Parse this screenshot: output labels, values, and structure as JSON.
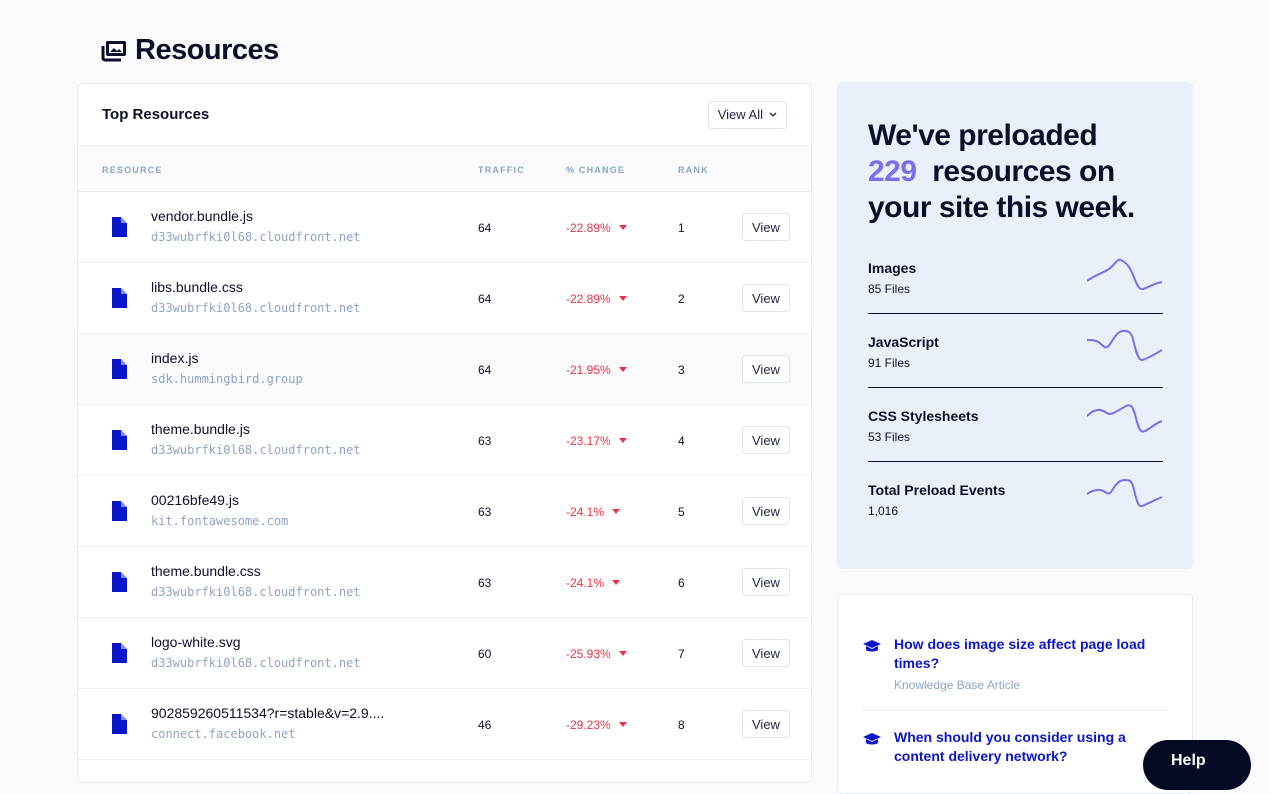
{
  "page": {
    "title": "Resources",
    "title_icon": "images-icon"
  },
  "table": {
    "title": "Top Resources",
    "view_all_label": "View All",
    "columns": [
      "RESOURCE",
      "TRAFFIC",
      "% CHANGE",
      "RANK"
    ],
    "row_button_label": "View",
    "rows": [
      {
        "name": "vendor.bundle.js",
        "host": "d33wubrfki0l68.cloudfront.net",
        "traffic": "64",
        "change": "-22.89%",
        "rank": "1"
      },
      {
        "name": "libs.bundle.css",
        "host": "d33wubrfki0l68.cloudfront.net",
        "traffic": "64",
        "change": "-22.89%",
        "rank": "2"
      },
      {
        "name": "index.js",
        "host": "sdk.hummingbird.group",
        "traffic": "64",
        "change": "-21.95%",
        "rank": "3"
      },
      {
        "name": "theme.bundle.js",
        "host": "d33wubrfki0l68.cloudfront.net",
        "traffic": "63",
        "change": "-23.17%",
        "rank": "4"
      },
      {
        "name": "00216bfe49.js",
        "host": "kit.fontawesome.com",
        "traffic": "63",
        "change": "-24.1%",
        "rank": "5"
      },
      {
        "name": "theme.bundle.css",
        "host": "d33wubrfki0l68.cloudfront.net",
        "traffic": "63",
        "change": "-24.1%",
        "rank": "6"
      },
      {
        "name": "logo-white.svg",
        "host": "d33wubrfki0l68.cloudfront.net",
        "traffic": "60",
        "change": "-25.93%",
        "rank": "7"
      },
      {
        "name": "902859260511534?r=stable&v=2.9....",
        "host": "connect.facebook.net",
        "traffic": "46",
        "change": "-29.23%",
        "rank": "8"
      }
    ]
  },
  "summary": {
    "headline_pre": "We've preloaded",
    "count": "229",
    "headline_post": "resources on your site this week.",
    "accent_color": "#7b6cf0",
    "stats": [
      {
        "label": "Images",
        "value": "85 Files"
      },
      {
        "label": "JavaScript",
        "value": "91 Files"
      },
      {
        "label": "CSS Stylesheets",
        "value": "53 Files"
      },
      {
        "label": "Total Preload Events",
        "value": "1,016"
      }
    ]
  },
  "articles": [
    {
      "title": "How does image size affect page load times?",
      "type": "Knowledge Base Article"
    },
    {
      "title": "When should you consider using a content delivery network?"
    }
  ],
  "help_label": "Help"
}
